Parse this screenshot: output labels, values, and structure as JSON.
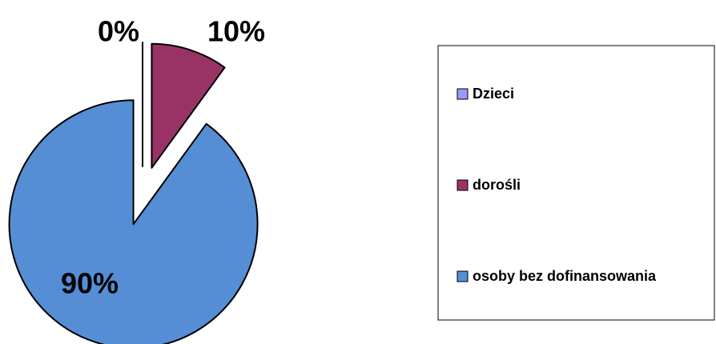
{
  "chart_data": {
    "type": "pie",
    "categories": [
      "Dzieci",
      "dorośli",
      "osoby bez dofinansowania"
    ],
    "values": [
      0,
      10,
      90
    ],
    "value_labels": [
      "0%",
      "10%",
      "90%"
    ],
    "colors": [
      "#9999ff",
      "#993366",
      "#558ed5"
    ],
    "legend": "right"
  }
}
